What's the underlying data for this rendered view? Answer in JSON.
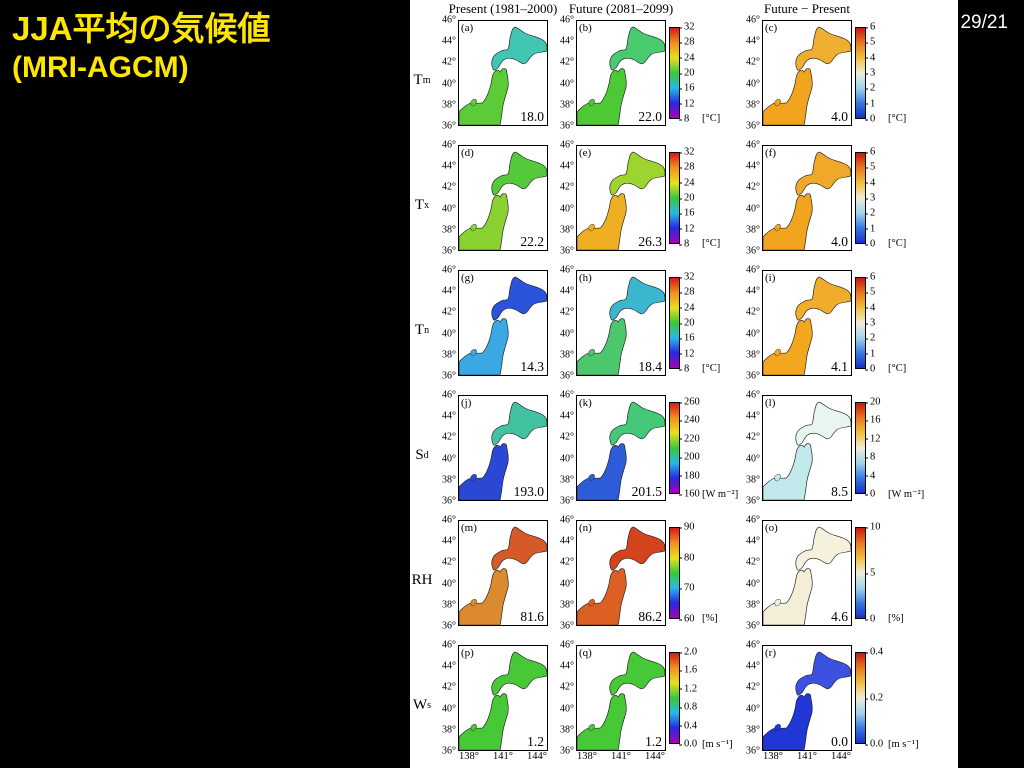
{
  "slide": {
    "title_line1": "JJA平均の気候値",
    "title_line2": "(MRI-AGCM)",
    "page_number": "29/21",
    "title_color": "#ffe600",
    "background": "#000000"
  },
  "figure": {
    "column_headers": [
      "Present (1981–2000)",
      "Future (2081–2099)",
      "Future − Present"
    ],
    "lat_ticks": [
      "46°",
      "44°",
      "42°",
      "40°",
      "38°",
      "36°"
    ],
    "lon_ticks": [
      "138°",
      "141°",
      "144°"
    ],
    "rows": [
      {
        "label": "T",
        "label_sub": "m",
        "panels": [
          {
            "letter": "(a)",
            "value": "18.0",
            "colors": {
              "honshu": "#5bcb38",
              "hokkaido": "#42c6b4"
            }
          },
          {
            "letter": "(b)",
            "value": "22.0",
            "colors": {
              "honshu": "#4cc934",
              "hokkaido": "#49ca6e"
            }
          },
          {
            "letter": "(c)",
            "value": "4.0",
            "colors": {
              "honshu": "#f3a41e",
              "hokkaido": "#eeae30"
            }
          }
        ],
        "main_colorbar": {
          "ticks": [
            "32",
            "28",
            "24",
            "20",
            "16",
            "12",
            "8"
          ],
          "unit": "[°C]",
          "gradient": "linear-gradient(to top, #aa00b4, #2828e0, #28b8e8, #38c838, #e8e020, #f09020, #d81818)"
        },
        "diff_colorbar": {
          "ticks": [
            "6",
            "5",
            "4",
            "3",
            "2",
            "1",
            "0"
          ],
          "unit": "[°C]",
          "gradient": "linear-gradient(to top, #1830c8, #3878e0, #a0d4ea, #f0ecd8, #f0c040, #e87820, #c81810)"
        }
      },
      {
        "label": "T",
        "label_sub": "x",
        "panels": [
          {
            "letter": "(d)",
            "value": "22.2",
            "colors": {
              "honshu": "#8ad232",
              "hokkaido": "#54ca3a"
            }
          },
          {
            "letter": "(e)",
            "value": "26.3",
            "colors": {
              "honshu": "#eeb022",
              "hokkaido": "#9ed42e"
            }
          },
          {
            "letter": "(f)",
            "value": "4.0",
            "colors": {
              "honshu": "#f3a41e",
              "hokkaido": "#f0a828"
            }
          }
        ],
        "main_colorbar": {
          "ticks": [
            "32",
            "28",
            "24",
            "20",
            "16",
            "12",
            "8"
          ],
          "unit": "[°C]",
          "gradient": "linear-gradient(to top, #aa00b4, #2828e0, #28b8e8, #38c838, #e8e020, #f09020, #d81818)"
        },
        "diff_colorbar": {
          "ticks": [
            "6",
            "5",
            "4",
            "3",
            "2",
            "1",
            "0"
          ],
          "unit": "[°C]",
          "gradient": "linear-gradient(to top, #1830c8, #3878e0, #a0d4ea, #f0ecd8, #f0c040, #e87820, #c81810)"
        }
      },
      {
        "label": "T",
        "label_sub": "n",
        "panels": [
          {
            "letter": "(g)",
            "value": "14.3",
            "colors": {
              "honshu": "#3aa8e2",
              "hokkaido": "#2b52da"
            }
          },
          {
            "letter": "(h)",
            "value": "18.4",
            "colors": {
              "honshu": "#4cc76e",
              "hokkaido": "#3ab6ce"
            }
          },
          {
            "letter": "(i)",
            "value": "4.1",
            "colors": {
              "honshu": "#f3a71e",
              "hokkaido": "#f0ac2a"
            }
          }
        ],
        "main_colorbar": {
          "ticks": [
            "32",
            "28",
            "24",
            "20",
            "16",
            "12",
            "8"
          ],
          "unit": "[°C]",
          "gradient": "linear-gradient(to top, #aa00b4, #2828e0, #28b8e8, #38c838, #e8e020, #f09020, #d81818)"
        },
        "diff_colorbar": {
          "ticks": [
            "6",
            "5",
            "4",
            "3",
            "2",
            "1",
            "0"
          ],
          "unit": "[°C]",
          "gradient": "linear-gradient(to top, #1830c8, #3878e0, #a0d4ea, #f0ecd8, #f0c040, #e87820, #c81810)"
        }
      },
      {
        "label": "S",
        "label_sub": "d",
        "panels": [
          {
            "letter": "(j)",
            "value": "193.0",
            "colors": {
              "honshu": "#2b48d4",
              "hokkaido": "#43c2a2"
            }
          },
          {
            "letter": "(k)",
            "value": "201.5",
            "colors": {
              "honshu": "#2e5cd8",
              "hokkaido": "#46c87a"
            }
          },
          {
            "letter": "(l)",
            "value": "8.5",
            "colors": {
              "honshu": "#c2eaec",
              "hokkaido": "#e9f5ef"
            }
          }
        ],
        "main_colorbar": {
          "ticks": [
            "260",
            "240",
            "220",
            "200",
            "180",
            "160"
          ],
          "unit": "[W m⁻²]",
          "gradient": "linear-gradient(to top, #aa00b4, #2828e0, #28b8e8, #38c838, #e8e020, #f09020, #d81818)"
        },
        "diff_colorbar": {
          "ticks": [
            "20",
            "16",
            "12",
            "8",
            "4",
            "0"
          ],
          "unit": "[W m⁻²]",
          "gradient": "linear-gradient(to top, #1830c8, #3878e0, #a0d4ea, #f0ecd8, #f0c040, #e87820, #c81810)"
        }
      },
      {
        "label": "RH",
        "label_sub": "",
        "panels": [
          {
            "letter": "(m)",
            "value": "81.6",
            "colors": {
              "honshu": "#dc8a2e",
              "hokkaido": "#d65a28"
            }
          },
          {
            "letter": "(n)",
            "value": "86.2",
            "colors": {
              "honshu": "#dc6024",
              "hokkaido": "#d2431e"
            }
          },
          {
            "letter": "(o)",
            "value": "4.6",
            "colors": {
              "honshu": "#f2eed8",
              "hokkaido": "#f5f1dd"
            }
          }
        ],
        "main_colorbar": {
          "ticks": [
            "90",
            "80",
            "70",
            "60"
          ],
          "unit": "[%]",
          "gradient": "linear-gradient(to top, #aa00b4, #2828e0, #28b8e8, #38c838, #e8e020, #f09020, #d81818)"
        },
        "diff_colorbar": {
          "ticks": [
            "10",
            "5",
            "0"
          ],
          "unit": "[%]",
          "gradient": "linear-gradient(to top, #1830c8, #3878e0, #a0d4ea, #f0ecd8, #f0c040, #e87820, #c81810)"
        }
      },
      {
        "label": "W",
        "label_sub": "s",
        "panels": [
          {
            "letter": "(p)",
            "value": "1.2",
            "colors": {
              "honshu": "#47c836",
              "hokkaido": "#47c836"
            }
          },
          {
            "letter": "(q)",
            "value": "1.2",
            "colors": {
              "honshu": "#47c836",
              "hokkaido": "#47c836"
            }
          },
          {
            "letter": "(r)",
            "value": "0.0",
            "colors": {
              "honshu": "#2136d6",
              "hokkaido": "#3c50e2"
            }
          }
        ],
        "main_colorbar": {
          "ticks": [
            "2.0",
            "1.6",
            "1.2",
            "0.8",
            "0.4",
            "0.0"
          ],
          "unit": "[m s⁻¹]",
          "gradient": "linear-gradient(to top, #aa00b4, #2828e0, #28b8e8, #38c838, #e8e020, #f09020, #d81818)"
        },
        "diff_colorbar": {
          "ticks": [
            "0.4",
            "0.2",
            "0.0"
          ],
          "unit": "[m s⁻¹]",
          "gradient": "linear-gradient(to top, #1830c8, #3878e0, #a0d4ea, #f0ecd8, #f0c040, #e87820, #c81810)"
        }
      }
    ]
  }
}
